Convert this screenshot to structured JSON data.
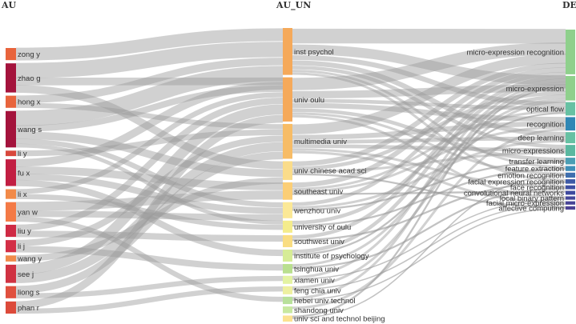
{
  "columns": {
    "au": "AU",
    "au_un": "AU_UN",
    "de": "DE"
  },
  "nodes": {
    "au": [
      {
        "label": "zong y",
        "color": "#e8643c",
        "weight": 1.0
      },
      {
        "label": "zhao g",
        "color": "#a4133c",
        "weight": 2.4
      },
      {
        "label": "hong x",
        "color": "#e8643c",
        "weight": 1.0
      },
      {
        "label": "wang s",
        "color": "#a4133c",
        "weight": 3.0
      },
      {
        "label": "li y",
        "color": "#d8483c",
        "weight": 0.45
      },
      {
        "label": "fu x",
        "color": "#c21e42",
        "weight": 2.2
      },
      {
        "label": "li x",
        "color": "#f28a48",
        "weight": 0.8
      },
      {
        "label": "yan w",
        "color": "#f47a46",
        "weight": 1.6
      },
      {
        "label": "liu y",
        "color": "#cf2a44",
        "weight": 1.0
      },
      {
        "label": "li j",
        "color": "#d32e46",
        "weight": 1.0
      },
      {
        "label": "wang y",
        "color": "#f08a4a",
        "weight": 0.5
      },
      {
        "label": "see j",
        "color": "#d03242",
        "weight": 1.5
      },
      {
        "label": "liong s",
        "color": "#e0503e",
        "weight": 1.0
      },
      {
        "label": "phan r",
        "color": "#dc4a3a",
        "weight": 1.0
      }
    ],
    "au_un": [
      {
        "label": "inst psychol",
        "color": "#f5a95a",
        "weight": 3.5
      },
      {
        "label": "univ oulu",
        "color": "#f5a95a",
        "weight": 3.3
      },
      {
        "label": "multimedia univ",
        "color": "#f7bc66",
        "weight": 2.6
      },
      {
        "label": "univ chinese acad sci",
        "color": "#fadc8a",
        "weight": 1.4
      },
      {
        "label": "southeast univ",
        "color": "#fbce76",
        "weight": 1.3
      },
      {
        "label": "wenzhou univ",
        "color": "#fbe896",
        "weight": 1.2
      },
      {
        "label": "university of oulu",
        "color": "#f4ec8c",
        "weight": 0.9
      },
      {
        "label": "southwest univ",
        "color": "#f9dd82",
        "weight": 0.9
      },
      {
        "label": "institute of psychology",
        "color": "#d6ec96",
        "weight": 0.9
      },
      {
        "label": "tsinghua univ",
        "color": "#b9df8e",
        "weight": 0.7
      },
      {
        "label": "xiamen univ",
        "color": "#e4f3a2",
        "weight": 0.6
      },
      {
        "label": "feng chia univ",
        "color": "#eef0a0",
        "weight": 0.6
      },
      {
        "label": "hebei univ technol",
        "color": "#b8e09a",
        "weight": 0.55
      },
      {
        "label": "shandong univ",
        "color": "#c8e8a0",
        "weight": 0.5
      },
      {
        "label": "univ sci and technol beijing",
        "color": "#fbe290",
        "weight": 0.45
      }
    ],
    "de": [
      {
        "label": "micro-expression recognition",
        "color": "#8fd08c",
        "weight": 4.0
      },
      {
        "label": "micro-expression",
        "color": "#8fd08c",
        "weight": 2.2
      },
      {
        "label": "optical flow",
        "color": "#66c1a3",
        "weight": 1.2
      },
      {
        "label": "recognition",
        "color": "#2f87b5",
        "weight": 1.2
      },
      {
        "label": "deep learning",
        "color": "#66c1a3",
        "weight": 1.0
      },
      {
        "label": "micro-expressions",
        "color": "#5ab8a0",
        "weight": 1.0
      },
      {
        "label": "transfer learning",
        "color": "#4a9eb4",
        "weight": 0.6
      },
      {
        "label": "feature extraction",
        "color": "#3f8fb8",
        "weight": 0.45
      },
      {
        "label": "emotion recognition",
        "color": "#3f6fae",
        "weight": 0.45
      },
      {
        "label": "facial expression recognition",
        "color": "#3d5aa6",
        "weight": 0.4
      },
      {
        "label": "face recognition",
        "color": "#3d4fa2",
        "weight": 0.35
      },
      {
        "label": "convolutional neural networks",
        "color": "#3f4a9e",
        "weight": 0.35
      },
      {
        "label": "local binary pattern",
        "color": "#44479a",
        "weight": 0.3
      },
      {
        "label": "facial micro-expression",
        "color": "#484496",
        "weight": 0.3
      },
      {
        "label": "affective computing",
        "color": "#4c4294",
        "weight": 0.3
      }
    ]
  },
  "links": [
    [
      0,
      0,
      1.0
    ],
    [
      1,
      0,
      1.2
    ],
    [
      1,
      1,
      0.6
    ],
    [
      1,
      3,
      0.6
    ],
    [
      2,
      0,
      0.6
    ],
    [
      2,
      2,
      0.4
    ],
    [
      3,
      0,
      1.2
    ],
    [
      3,
      1,
      0.5
    ],
    [
      3,
      3,
      0.6
    ],
    [
      3,
      5,
      0.4
    ],
    [
      3,
      6,
      0.3
    ],
    [
      4,
      2,
      0.45
    ],
    [
      5,
      0,
      0.6
    ],
    [
      5,
      4,
      0.6
    ],
    [
      5,
      5,
      0.5
    ],
    [
      5,
      8,
      0.5
    ],
    [
      6,
      1,
      0.4
    ],
    [
      6,
      6,
      0.4
    ],
    [
      7,
      4,
      0.7
    ],
    [
      7,
      5,
      0.5
    ],
    [
      7,
      12,
      0.4
    ],
    [
      8,
      1,
      0.5
    ],
    [
      8,
      7,
      0.5
    ],
    [
      9,
      2,
      0.5
    ],
    [
      9,
      9,
      0.5
    ],
    [
      10,
      3,
      0.5
    ],
    [
      11,
      1,
      0.8
    ],
    [
      11,
      2,
      0.7
    ],
    [
      12,
      2,
      0.6
    ],
    [
      12,
      10,
      0.4
    ],
    [
      13,
      1,
      0.6
    ],
    [
      13,
      11,
      0.4
    ]
  ],
  "links2": [
    [
      0,
      0,
      1.2
    ],
    [
      0,
      1,
      0.8
    ],
    [
      0,
      2,
      0.4
    ],
    [
      0,
      4,
      0.4
    ],
    [
      0,
      5,
      0.3
    ],
    [
      0,
      7,
      0.2
    ],
    [
      0,
      9,
      0.2
    ],
    [
      1,
      0,
      1.0
    ],
    [
      1,
      1,
      0.6
    ],
    [
      1,
      2,
      0.3
    ],
    [
      1,
      3,
      0.4
    ],
    [
      1,
      6,
      0.3
    ],
    [
      1,
      8,
      0.2
    ],
    [
      1,
      12,
      0.2
    ],
    [
      2,
      0,
      0.8
    ],
    [
      2,
      3,
      0.4
    ],
    [
      2,
      4,
      0.3
    ],
    [
      2,
      5,
      0.3
    ],
    [
      2,
      10,
      0.2
    ],
    [
      2,
      13,
      0.2
    ],
    [
      3,
      0,
      0.4
    ],
    [
      3,
      1,
      0.3
    ],
    [
      3,
      5,
      0.2
    ],
    [
      3,
      14,
      0.15
    ],
    [
      4,
      0,
      0.4
    ],
    [
      4,
      2,
      0.2
    ],
    [
      4,
      3,
      0.2
    ],
    [
      4,
      11,
      0.15
    ],
    [
      5,
      0,
      0.3
    ],
    [
      5,
      4,
      0.2
    ],
    [
      5,
      6,
      0.15
    ],
    [
      6,
      1,
      0.3
    ],
    [
      6,
      7,
      0.15
    ],
    [
      7,
      0,
      0.3
    ],
    [
      7,
      9,
      0.15
    ],
    [
      8,
      0,
      0.3
    ],
    [
      8,
      2,
      0.15
    ],
    [
      9,
      1,
      0.2
    ],
    [
      9,
      10,
      0.15
    ],
    [
      10,
      0,
      0.2
    ],
    [
      10,
      12,
      0.1
    ],
    [
      11,
      1,
      0.2
    ],
    [
      11,
      13,
      0.1
    ],
    [
      12,
      0,
      0.2
    ],
    [
      12,
      14,
      0.1
    ],
    [
      13,
      3,
      0.2
    ],
    [
      14,
      0,
      0.15
    ],
    [
      14,
      8,
      0.1
    ]
  ]
}
